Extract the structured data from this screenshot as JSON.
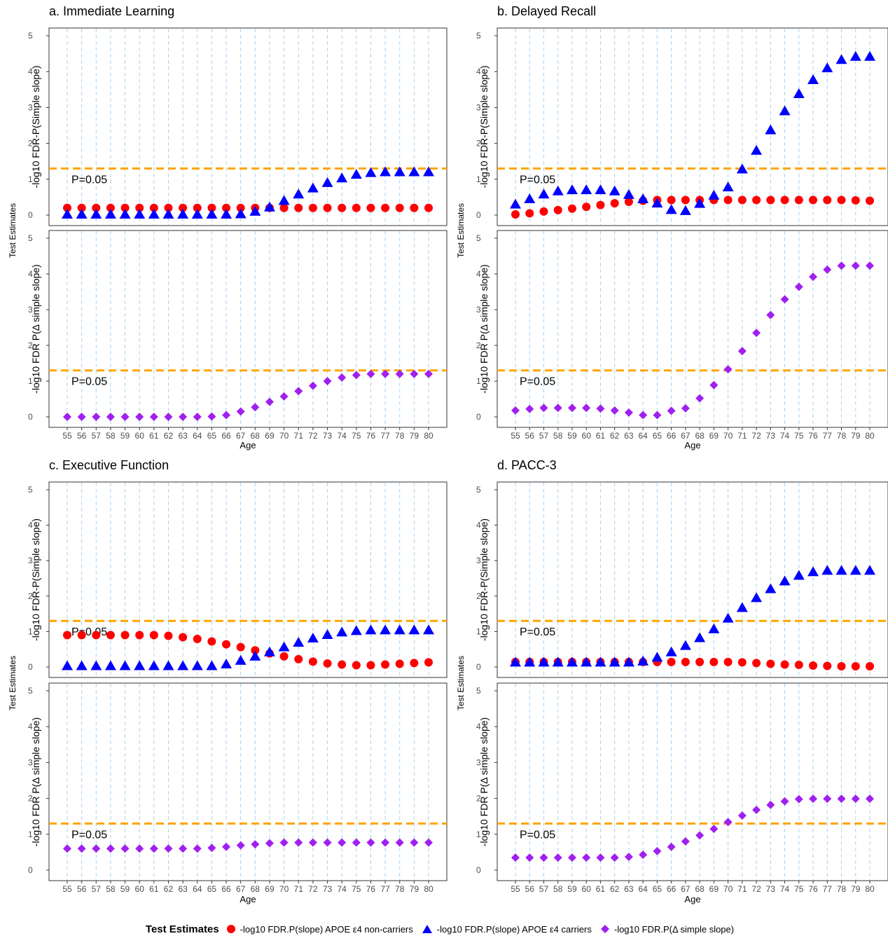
{
  "figure": {
    "y_label": "Test Estimates",
    "x_label": "Age",
    "top_ylabel": "-log10 FDR-P(Simple slope)",
    "bottom_ylabel": "-log10 FDR P(Δ simple slope)",
    "ref_line_label": "P=0.05",
    "ref_value": 1.3,
    "colors": {
      "noncarriers": "#ff0000",
      "carriers": "#0000ff",
      "delta": "#a020f0",
      "ref_line": "#ffa500",
      "grid": "#a6d1f2"
    }
  },
  "legend": {
    "title": "Test Estimates",
    "items": [
      {
        "label": "-log10 FDR.P(slope) APOE ε4 non-carriers",
        "shape": "circle",
        "color": "#ff0000"
      },
      {
        "label": "-log10 FDR.P(slope) APOE ε4 carriers",
        "shape": "triangle",
        "color": "#0000ff"
      },
      {
        "label": "-log10 FDR.P(Δ simple slope)",
        "shape": "diamond",
        "color": "#a020f0"
      }
    ]
  },
  "chart_data": [
    {
      "type": "scatter",
      "title": "a. Immediate Learning",
      "x": [
        55,
        56,
        57,
        58,
        59,
        60,
        61,
        62,
        63,
        64,
        65,
        66,
        67,
        68,
        69,
        70,
        71,
        72,
        73,
        74,
        75,
        76,
        77,
        78,
        79,
        80
      ],
      "ylim": [
        0,
        5
      ],
      "yticks": [
        0,
        1,
        2,
        3,
        4,
        5
      ],
      "series_top": [
        {
          "key": "noncarriers",
          "values": [
            0.2,
            0.2,
            0.2,
            0.2,
            0.2,
            0.2,
            0.2,
            0.2,
            0.2,
            0.2,
            0.2,
            0.2,
            0.2,
            0.2,
            0.2,
            0.2,
            0.2,
            0.2,
            0.2,
            0.2,
            0.2,
            0.2,
            0.2,
            0.2,
            0.2,
            0.2
          ]
        },
        {
          "key": "carriers",
          "values": [
            0.02,
            0.02,
            0.02,
            0.02,
            0.02,
            0.02,
            0.02,
            0.02,
            0.02,
            0.02,
            0.02,
            0.02,
            0.03,
            0.1,
            0.22,
            0.4,
            0.58,
            0.75,
            0.9,
            1.03,
            1.13,
            1.18,
            1.2,
            1.2,
            1.2,
            1.2
          ]
        }
      ],
      "series_bottom": [
        {
          "key": "delta",
          "values": [
            0.0,
            0.0,
            0.0,
            0.0,
            0.0,
            0.0,
            0.0,
            0.0,
            0.0,
            0.0,
            0.01,
            0.05,
            0.15,
            0.27,
            0.42,
            0.57,
            0.72,
            0.87,
            1.0,
            1.1,
            1.17,
            1.2,
            1.2,
            1.2,
            1.2,
            1.2
          ]
        }
      ]
    },
    {
      "type": "scatter",
      "title": "b. Delayed Recall",
      "x": [
        55,
        56,
        57,
        58,
        59,
        60,
        61,
        62,
        63,
        64,
        65,
        66,
        67,
        68,
        69,
        70,
        71,
        72,
        73,
        74,
        75,
        76,
        77,
        78,
        79,
        80
      ],
      "ylim": [
        0,
        5
      ],
      "yticks": [
        0,
        1,
        2,
        3,
        4,
        5
      ],
      "series_top": [
        {
          "key": "noncarriers",
          "values": [
            0.02,
            0.05,
            0.1,
            0.14,
            0.18,
            0.23,
            0.28,
            0.33,
            0.37,
            0.4,
            0.42,
            0.42,
            0.42,
            0.42,
            0.42,
            0.42,
            0.42,
            0.42,
            0.42,
            0.42,
            0.42,
            0.42,
            0.42,
            0.42,
            0.41,
            0.4
          ]
        },
        {
          "key": "carriers",
          "values": [
            0.3,
            0.45,
            0.58,
            0.67,
            0.7,
            0.7,
            0.7,
            0.67,
            0.57,
            0.45,
            0.33,
            0.15,
            0.12,
            0.32,
            0.55,
            0.78,
            1.28,
            1.8,
            2.37,
            2.9,
            3.38,
            3.77,
            4.1,
            4.33,
            4.42,
            4.42
          ]
        }
      ],
      "series_bottom": [
        {
          "key": "delta",
          "values": [
            0.18,
            0.22,
            0.25,
            0.25,
            0.25,
            0.25,
            0.23,
            0.18,
            0.12,
            0.05,
            0.05,
            0.17,
            0.24,
            0.52,
            0.89,
            1.33,
            1.84,
            2.35,
            2.85,
            3.29,
            3.64,
            3.92,
            4.12,
            4.23,
            4.23,
            4.23
          ]
        }
      ]
    },
    {
      "type": "scatter",
      "title": "c. Executive Function",
      "x": [
        55,
        56,
        57,
        58,
        59,
        60,
        61,
        62,
        63,
        64,
        65,
        66,
        67,
        68,
        69,
        70,
        71,
        72,
        73,
        74,
        75,
        76,
        77,
        78,
        79,
        80
      ],
      "ylim": [
        0,
        5
      ],
      "yticks": [
        0,
        1,
        2,
        3,
        4,
        5
      ],
      "series_top": [
        {
          "key": "noncarriers",
          "values": [
            0.9,
            0.9,
            0.9,
            0.9,
            0.9,
            0.9,
            0.9,
            0.88,
            0.84,
            0.79,
            0.72,
            0.64,
            0.56,
            0.47,
            0.38,
            0.3,
            0.22,
            0.15,
            0.1,
            0.07,
            0.05,
            0.05,
            0.07,
            0.09,
            0.11,
            0.13
          ]
        },
        {
          "key": "carriers",
          "values": [
            0.03,
            0.03,
            0.03,
            0.03,
            0.03,
            0.03,
            0.03,
            0.03,
            0.03,
            0.03,
            0.03,
            0.08,
            0.18,
            0.3,
            0.42,
            0.56,
            0.69,
            0.81,
            0.91,
            0.98,
            1.02,
            1.04,
            1.04,
            1.04,
            1.04,
            1.04
          ]
        }
      ],
      "series_bottom": [
        {
          "key": "delta",
          "values": [
            0.6,
            0.6,
            0.6,
            0.6,
            0.6,
            0.6,
            0.6,
            0.6,
            0.6,
            0.6,
            0.62,
            0.65,
            0.69,
            0.72,
            0.75,
            0.77,
            0.77,
            0.77,
            0.77,
            0.77,
            0.77,
            0.77,
            0.77,
            0.77,
            0.77,
            0.77
          ]
        }
      ]
    },
    {
      "type": "scatter",
      "title": "d. PACC-3",
      "x": [
        55,
        56,
        57,
        58,
        59,
        60,
        61,
        62,
        63,
        64,
        65,
        66,
        67,
        68,
        69,
        70,
        71,
        72,
        73,
        74,
        75,
        76,
        77,
        78,
        79,
        80
      ],
      "ylim": [
        0,
        5
      ],
      "yticks": [
        0,
        1,
        2,
        3,
        4,
        5
      ],
      "series_top": [
        {
          "key": "noncarriers",
          "values": [
            0.14,
            0.14,
            0.14,
            0.14,
            0.14,
            0.14,
            0.14,
            0.14,
            0.14,
            0.14,
            0.14,
            0.14,
            0.14,
            0.14,
            0.14,
            0.14,
            0.13,
            0.11,
            0.09,
            0.07,
            0.06,
            0.04,
            0.03,
            0.02,
            0.02,
            0.02
          ]
        },
        {
          "key": "carriers",
          "values": [
            0.13,
            0.13,
            0.13,
            0.13,
            0.13,
            0.13,
            0.13,
            0.13,
            0.13,
            0.16,
            0.27,
            0.42,
            0.6,
            0.82,
            1.07,
            1.37,
            1.67,
            1.95,
            2.2,
            2.42,
            2.58,
            2.68,
            2.72,
            2.72,
            2.72,
            2.72
          ]
        }
      ],
      "series_bottom": [
        {
          "key": "delta",
          "values": [
            0.35,
            0.35,
            0.35,
            0.35,
            0.35,
            0.35,
            0.35,
            0.35,
            0.37,
            0.43,
            0.53,
            0.65,
            0.8,
            0.97,
            1.15,
            1.34,
            1.52,
            1.68,
            1.82,
            1.92,
            1.98,
            1.99,
            1.99,
            1.99,
            1.99,
            1.99
          ]
        }
      ]
    }
  ]
}
